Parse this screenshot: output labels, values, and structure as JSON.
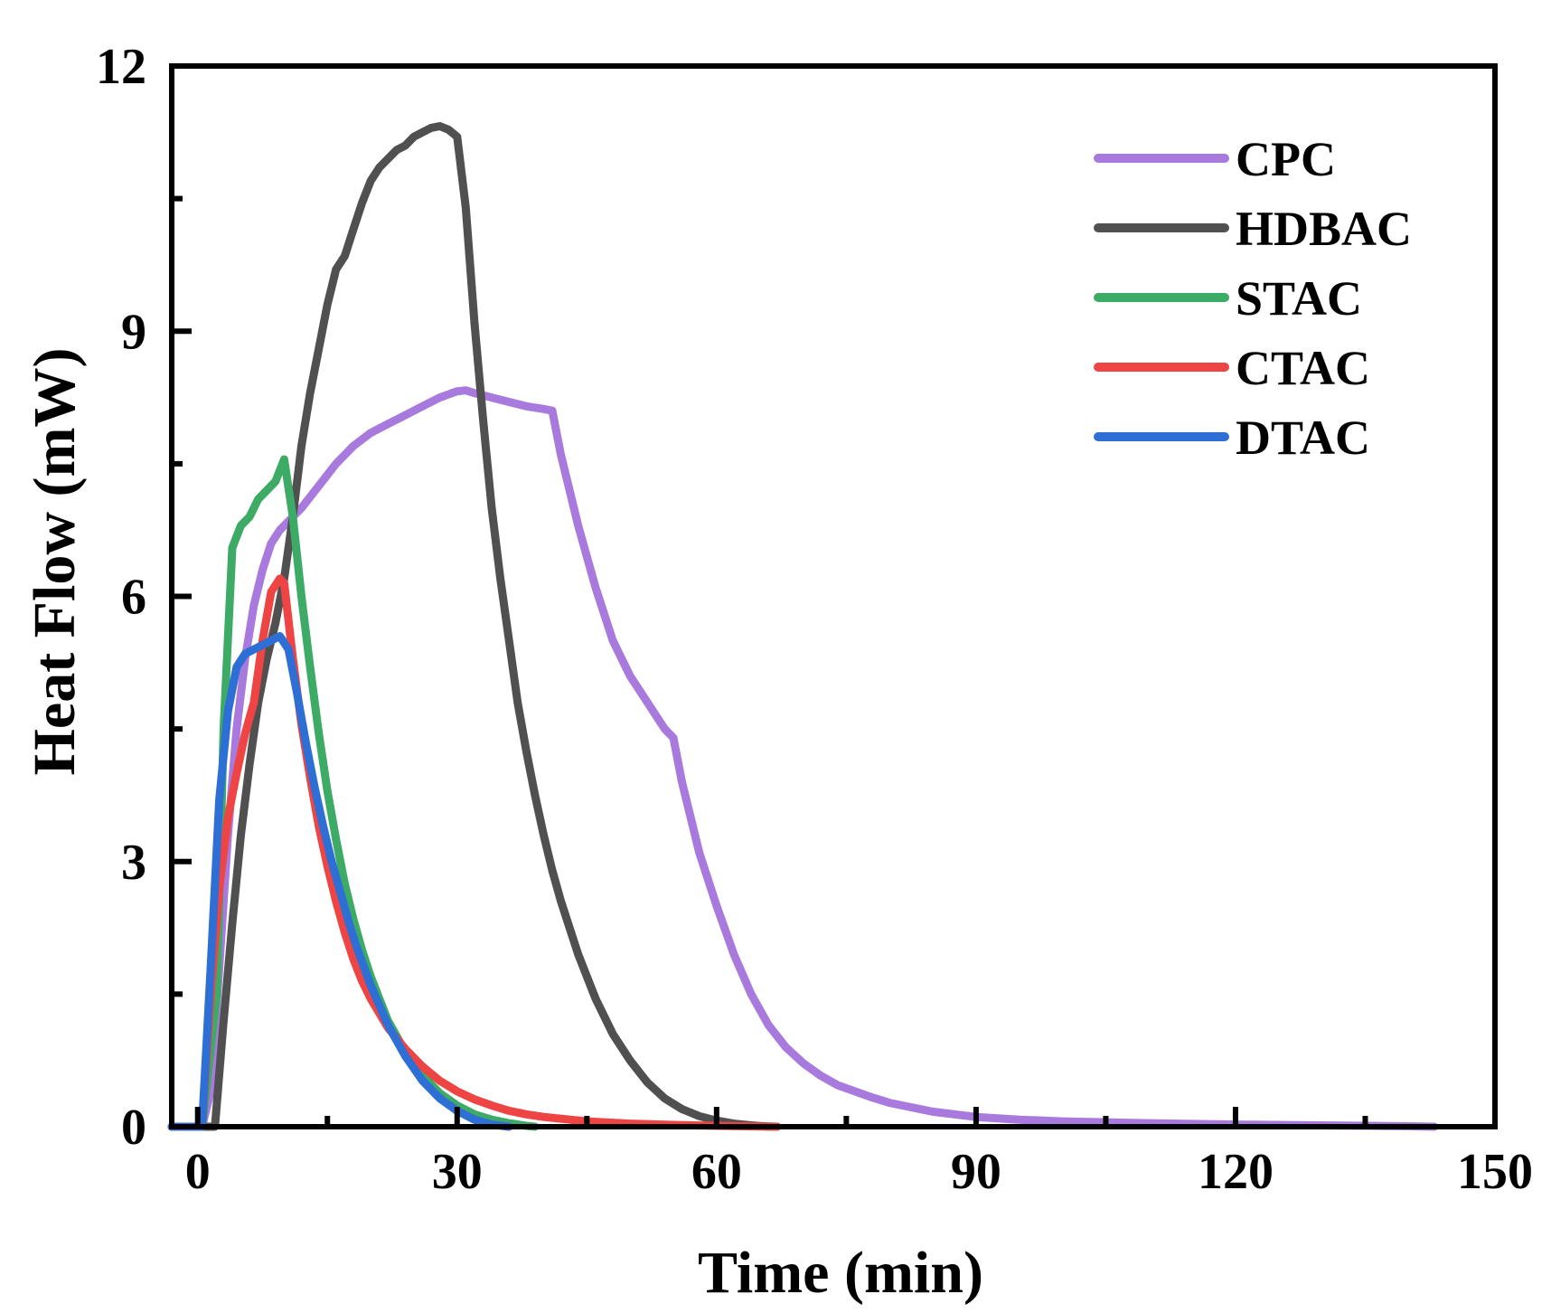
{
  "chart_data": {
    "type": "line",
    "title": "",
    "xlabel": "Time (min)",
    "ylabel": "Heat Flow (mW)",
    "xlim": [
      -3,
      150
    ],
    "ylim": [
      0,
      12
    ],
    "xticks": [
      0,
      30,
      60,
      90,
      120,
      150
    ],
    "yticks": [
      0,
      3,
      6,
      9,
      12
    ],
    "xticks_labels": [
      "0",
      "30",
      "60",
      "90",
      "120",
      "150"
    ],
    "yticks_labels": [
      "0",
      "3",
      "6",
      "9",
      "12"
    ],
    "grid": false,
    "legend_position": "top-right",
    "series": [
      {
        "name": "CPC",
        "color": "#a97ade",
        "x": [
          -3,
          0.5,
          1.5,
          2.5,
          3.5,
          4.5,
          5.5,
          6.5,
          7.5,
          8.5,
          9.5,
          10.5,
          12,
          14,
          16,
          18,
          20,
          22,
          24,
          26,
          28,
          30,
          31,
          32,
          34,
          36,
          38,
          40,
          41,
          42,
          44,
          46,
          48,
          50,
          52,
          54,
          55,
          56,
          58,
          60,
          62,
          64,
          66,
          68,
          70,
          72,
          74,
          76,
          78,
          80,
          85,
          90,
          95,
          100,
          110,
          120,
          130,
          140,
          143
        ],
        "y": [
          0,
          0,
          0.4,
          1.8,
          3.3,
          4.5,
          5.3,
          5.9,
          6.3,
          6.6,
          6.75,
          6.85,
          7.0,
          7.25,
          7.5,
          7.7,
          7.85,
          7.95,
          8.05,
          8.15,
          8.25,
          8.32,
          8.33,
          8.3,
          8.25,
          8.2,
          8.15,
          8.12,
          8.1,
          7.6,
          6.8,
          6.1,
          5.5,
          5.1,
          4.8,
          4.5,
          4.4,
          3.9,
          3.1,
          2.5,
          1.95,
          1.5,
          1.15,
          0.9,
          0.72,
          0.58,
          0.47,
          0.4,
          0.33,
          0.27,
          0.17,
          0.11,
          0.08,
          0.06,
          0.04,
          0.025,
          0.015,
          0.005,
          0
        ]
      },
      {
        "name": "HDBAC",
        "color": "#505050",
        "x": [
          -3,
          2,
          3,
          4,
          5,
          6,
          7,
          8,
          9,
          10,
          11,
          12,
          13,
          14,
          15,
          16,
          17,
          18,
          19,
          20,
          21,
          22,
          23,
          24,
          25,
          26,
          27,
          28,
          29,
          30,
          31,
          32,
          33,
          34,
          35,
          36,
          37,
          38,
          39,
          40,
          41,
          42,
          44,
          46,
          48,
          50,
          52,
          54,
          56,
          58,
          60,
          62,
          64,
          65,
          66,
          67
        ],
        "y": [
          0,
          0,
          1.2,
          2.3,
          3.3,
          4.1,
          4.8,
          5.3,
          5.7,
          6.2,
          6.9,
          7.7,
          8.3,
          8.8,
          9.3,
          9.7,
          9.85,
          10.15,
          10.45,
          10.7,
          10.85,
          10.95,
          11.05,
          11.1,
          11.2,
          11.25,
          11.3,
          11.32,
          11.28,
          11.2,
          10.4,
          9.1,
          8.0,
          7.0,
          6.2,
          5.5,
          4.8,
          4.25,
          3.75,
          3.3,
          2.9,
          2.55,
          1.95,
          1.45,
          1.05,
          0.75,
          0.5,
          0.32,
          0.2,
          0.12,
          0.07,
          0.035,
          0.015,
          0.008,
          0.003,
          0
        ]
      },
      {
        "name": "STAC",
        "color": "#3daa66",
        "x": [
          -3,
          0.5,
          2.2,
          3,
          4,
          5,
          6,
          7,
          8,
          9,
          10,
          11,
          12,
          13,
          14,
          15,
          16,
          17,
          18,
          19,
          20,
          22,
          24,
          26,
          28,
          30,
          32,
          34,
          36,
          38,
          39
        ],
        "y": [
          0,
          0,
          1.5,
          4.5,
          6.55,
          6.8,
          6.9,
          7.1,
          7.2,
          7.3,
          7.55,
          6.9,
          6.0,
          5.2,
          4.45,
          3.8,
          3.25,
          2.75,
          2.35,
          2.0,
          1.7,
          1.2,
          0.85,
          0.58,
          0.38,
          0.24,
          0.14,
          0.08,
          0.04,
          0.01,
          0
        ]
      },
      {
        "name": "CTAC",
        "color": "#ee4444",
        "x": [
          -3,
          0.5,
          1.5,
          2.5,
          3.5,
          4.5,
          5.5,
          6.5,
          7.5,
          8.5,
          9.5,
          10,
          11,
          12,
          13,
          14,
          15,
          16,
          17,
          18,
          19,
          20,
          22,
          24,
          26,
          28,
          30,
          32,
          34,
          36,
          38,
          40,
          45,
          50,
          55,
          60,
          64,
          67
        ],
        "y": [
          0,
          0,
          1.5,
          2.7,
          3.5,
          4.0,
          4.45,
          4.8,
          5.5,
          6.05,
          6.2,
          6.15,
          5.3,
          4.55,
          3.95,
          3.4,
          2.95,
          2.55,
          2.2,
          1.9,
          1.65,
          1.45,
          1.12,
          0.88,
          0.68,
          0.52,
          0.4,
          0.31,
          0.24,
          0.18,
          0.14,
          0.11,
          0.06,
          0.035,
          0.02,
          0.01,
          0.004,
          0
        ]
      },
      {
        "name": "DTAC",
        "color": "#2e6fd6",
        "x": [
          -3,
          0.5,
          1.5,
          2.5,
          3.5,
          4.5,
          5.5,
          6.5,
          7.5,
          8.5,
          9.5,
          10.5,
          11.5,
          12.5,
          13.5,
          14.5,
          15.5,
          16.5,
          17.5,
          18.5,
          20,
          22,
          24,
          26,
          28,
          30,
          32,
          34,
          36
        ],
        "y": [
          0,
          0,
          1.8,
          3.7,
          4.7,
          5.2,
          5.35,
          5.4,
          5.45,
          5.5,
          5.55,
          5.4,
          4.9,
          4.35,
          3.85,
          3.4,
          3.0,
          2.65,
          2.3,
          2.0,
          1.6,
          1.15,
          0.8,
          0.52,
          0.32,
          0.18,
          0.08,
          0.025,
          0
        ]
      }
    ]
  }
}
